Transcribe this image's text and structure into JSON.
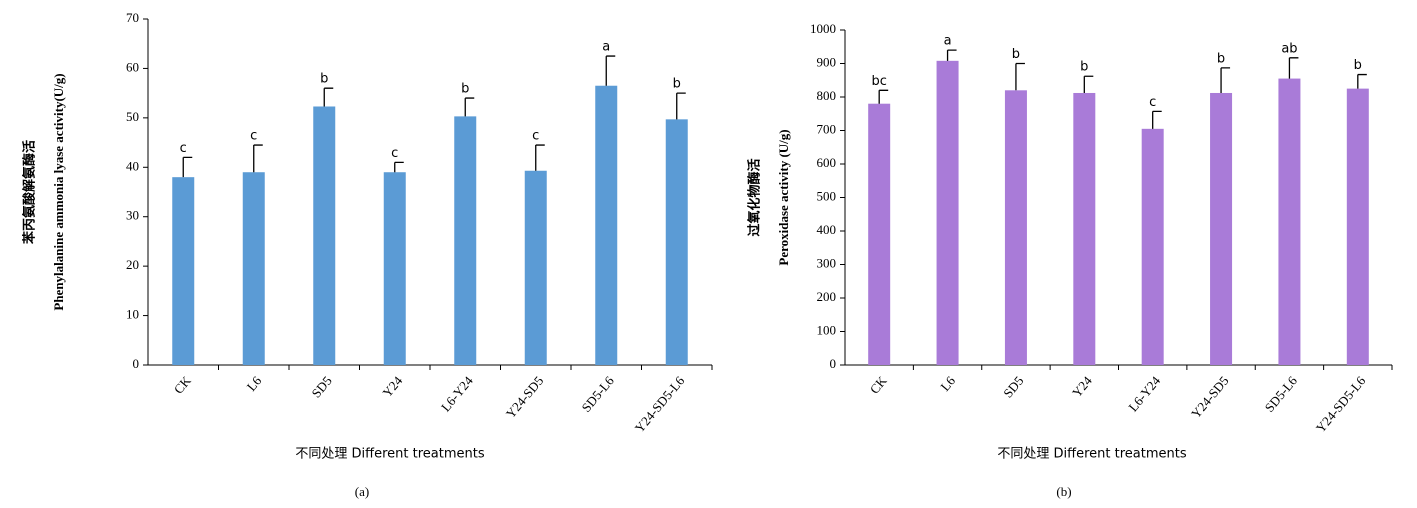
{
  "chart_data": [
    {
      "type": "bar",
      "y_label_cn": "苯丙氨酸解氨酶活",
      "y_label": "Phenylalanine ammonia lyase activity(U/g)",
      "x_label": "不同处理 Different treatments",
      "caption": "(a)",
      "categories": [
        "CK",
        "L6",
        "SD5",
        "Y24",
        "L6-Y24",
        "Y24-SD5",
        "SD5-L6",
        "Y24-SD5-L6"
      ],
      "values": [
        38,
        39,
        52.3,
        39,
        50.3,
        39.3,
        56.5,
        49.7
      ],
      "errors": [
        4,
        5.5,
        3.7,
        2,
        3.7,
        5.2,
        6,
        5.3
      ],
      "annotations": [
        "c",
        "c",
        "b",
        "c",
        "b",
        "c",
        "a",
        "b"
      ],
      "color": "#5b9bd5",
      "ylim": [
        0,
        70
      ],
      "yticks": [
        0,
        10,
        20,
        30,
        40,
        50,
        60,
        70
      ]
    },
    {
      "type": "bar",
      "y_label_cn": "过氧化物酶活",
      "y_label": "Peroxidase activity (U/g)",
      "x_label": "不同处理 Different treatments",
      "caption": "(b)",
      "categories": [
        "CK",
        "L6",
        "SD5",
        "Y24",
        "L6-Y24",
        "Y24-SD5",
        "SD5-L6",
        "Y24-SD5-L6"
      ],
      "values": [
        780,
        908,
        820,
        812,
        705,
        812,
        855,
        825
      ],
      "errors": [
        40,
        32,
        80,
        50,
        52,
        75,
        62,
        42
      ],
      "annotations": [
        "bc",
        "a",
        "b",
        "b",
        "c",
        "b",
        "ab",
        "b"
      ],
      "color": "#a97bd8",
      "ylim": [
        0,
        1000
      ],
      "yticks": [
        0,
        100,
        200,
        300,
        400,
        500,
        600,
        700,
        800,
        900,
        1000
      ]
    }
  ]
}
